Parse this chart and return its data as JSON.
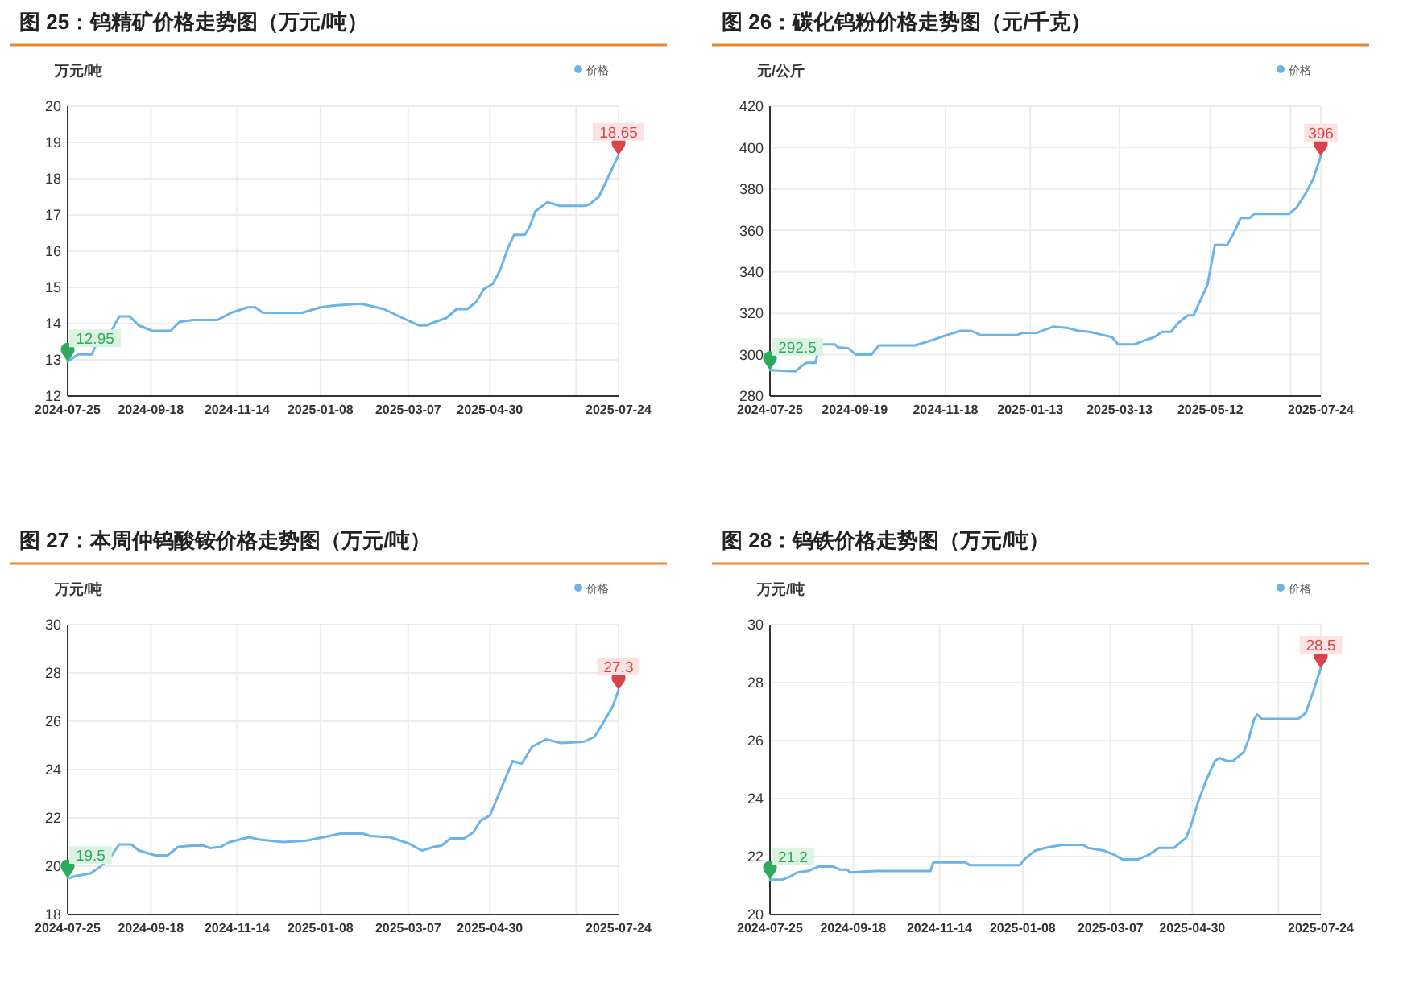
{
  "chart_data": [
    {
      "type": "line",
      "title": "图 25：钨精矿价格走势图（万元/吨）",
      "ylabel": "万元/吨",
      "legend": "top right",
      "grid": true,
      "marker": "none",
      "line_style": "solid",
      "xlim": [
        "2024-07-25",
        "2025-07-24"
      ],
      "xticks": [
        "2024-07-25",
        "2024-09-18",
        "2024-11-14",
        "2025-01-08",
        "2025-03-07",
        "2025-04-30",
        {
          "value": "2025-06-26",
          "label": null
        },
        "2025-07-24"
      ],
      "ylim": [
        12,
        20
      ],
      "yticks": [
        12,
        13,
        14,
        15,
        16,
        17,
        18,
        19,
        20
      ],
      "annotations": [
        {
          "text": "12.95",
          "x": "2024-07-25",
          "y": 12.95
        },
        {
          "text": "18.65",
          "x": "2025-07-24",
          "y": 18.65
        }
      ],
      "series": [
        {
          "name": "价格",
          "color": "#6ab4e8",
          "x": [
            "2024-07-25",
            "2024-08-01",
            "2024-08-10",
            "2024-08-12",
            "2024-08-23",
            "2024-08-28",
            "2024-09-04",
            "2024-09-10",
            "2024-09-19",
            "2024-10-01",
            "2024-10-07",
            "2024-10-16",
            "2024-11-01",
            "2024-11-10",
            "2024-11-21",
            "2024-11-26",
            "2024-12-01",
            "2024-12-27",
            "2025-01-08",
            "2025-01-17",
            "2025-02-04",
            "2025-02-19",
            "2025-03-01",
            "2025-03-14",
            "2025-03-19",
            "2025-03-25",
            "2025-04-01",
            "2025-04-08",
            "2025-04-15",
            "2025-04-21",
            "2025-04-26",
            "2025-05-02",
            "2025-05-07",
            "2025-05-12",
            "2025-05-16",
            "2025-05-23",
            "2025-05-26",
            "2025-05-30",
            "2025-06-07",
            "2025-06-15",
            "2025-07-02",
            "2025-07-05",
            "2025-07-11",
            "2025-07-15",
            "2025-07-20",
            "2025-07-24"
          ],
          "values": [
            12.95,
            13.15,
            13.15,
            13.35,
            13.8,
            14.2,
            14.2,
            13.95,
            13.8,
            13.8,
            14.05,
            14.1,
            14.1,
            14.3,
            14.45,
            14.45,
            14.3,
            14.3,
            14.45,
            14.5,
            14.55,
            14.4,
            14.2,
            13.95,
            13.95,
            14.05,
            14.15,
            14.4,
            14.4,
            14.6,
            14.95,
            15.1,
            15.5,
            16.1,
            16.45,
            16.45,
            16.65,
            17.1,
            17.35,
            17.25,
            17.25,
            17.3,
            17.5,
            17.85,
            18.3,
            18.65
          ]
        }
      ]
    },
    {
      "type": "line",
      "title": "图 26：碳化钨粉价格走势图（元/千克）",
      "ylabel": "元/公斤",
      "legend": "top right",
      "grid": true,
      "marker": "none",
      "line_style": "solid",
      "xlim": [
        "2024-07-25",
        "2025-07-24"
      ],
      "xticks": [
        "2024-07-25",
        "2024-09-19",
        "2024-11-18",
        "2025-01-13",
        "2025-03-13",
        "2025-05-12",
        {
          "value": "2025-07-04",
          "label": null
        },
        "2025-07-24"
      ],
      "ylim": [
        280,
        420
      ],
      "yticks": [
        280,
        300,
        320,
        340,
        360,
        380,
        400,
        420
      ],
      "annotations": [
        {
          "text": "292.5",
          "x": "2024-07-25",
          "y": 292.5
        },
        {
          "text": "396",
          "x": "2025-07-24",
          "y": 396
        }
      ],
      "series": [
        {
          "name": "价格",
          "color": "#6ab4e8",
          "x": [
            "2024-07-25",
            "2024-08-11",
            "2024-08-14",
            "2024-08-18",
            "2024-08-24",
            "2024-08-27",
            "2024-09-06",
            "2024-09-08",
            "2024-09-15",
            "2024-09-20",
            "2024-09-30",
            "2024-10-05",
            "2024-10-29",
            "2024-11-09",
            "2024-11-19",
            "2024-11-28",
            "2024-12-05",
            "2024-12-11",
            "2025-01-04",
            "2025-01-08",
            "2025-01-17",
            "2025-01-28",
            "2025-02-06",
            "2025-02-14",
            "2025-02-21",
            "2025-03-02",
            "2025-03-08",
            "2025-03-12",
            "2025-03-23",
            "2025-03-30",
            "2025-04-05",
            "2025-04-10",
            "2025-04-16",
            "2025-04-21",
            "2025-04-27",
            "2025-05-01",
            "2025-05-04",
            "2025-05-10",
            "2025-05-15",
            "2025-05-23",
            "2025-05-27",
            "2025-06-01",
            "2025-06-07",
            "2025-06-10",
            "2025-07-03",
            "2025-07-08",
            "2025-07-14",
            "2025-07-19",
            "2025-07-24"
          ],
          "values": [
            292.5,
            292,
            294,
            296,
            296,
            305,
            305,
            303.5,
            303,
            300,
            300,
            304.5,
            304.5,
            307,
            309.5,
            311.5,
            311.5,
            309.5,
            309.5,
            310.5,
            310.5,
            313.5,
            313,
            311.5,
            311,
            309.5,
            308.5,
            305,
            305,
            307,
            308.5,
            311,
            311,
            315.5,
            319,
            319,
            324,
            333.5,
            353,
            353,
            358,
            366,
            366,
            368,
            368,
            371,
            378,
            385,
            396
          ]
        }
      ]
    },
    {
      "type": "line",
      "title": "图 27：本周仲钨酸铵价格走势图（万元/吨）",
      "ylabel": "万元/吨",
      "legend": "top right",
      "grid": true,
      "marker": "none",
      "line_style": "solid",
      "xlim": [
        "2024-07-25",
        "2025-07-24"
      ],
      "xticks": [
        "2024-07-25",
        "2024-09-18",
        "2024-11-14",
        "2025-01-08",
        "2025-03-07",
        "2025-04-30",
        {
          "value": "2025-06-26",
          "label": null
        },
        "2025-07-24"
      ],
      "ylim": [
        18,
        30
      ],
      "yticks": [
        18,
        20,
        22,
        24,
        26,
        28,
        30
      ],
      "annotations": [
        {
          "text": "19.5",
          "x": "2024-07-25",
          "y": 19.5
        },
        {
          "text": "27.3",
          "x": "2025-07-24",
          "y": 27.3
        }
      ],
      "series": [
        {
          "name": "价格",
          "color": "#6ab4e8",
          "x": [
            "2024-07-25",
            "2024-07-31",
            "2024-08-09",
            "2024-08-15",
            "2024-08-22",
            "2024-08-28",
            "2024-09-05",
            "2024-09-10",
            "2024-09-21",
            "2024-09-29",
            "2024-10-06",
            "2024-10-15",
            "2024-10-23",
            "2024-10-27",
            "2024-11-03",
            "2024-11-09",
            "2024-11-22",
            "2024-11-29",
            "2024-12-14",
            "2024-12-29",
            "2025-01-10",
            "2025-01-21",
            "2025-02-05",
            "2025-02-10",
            "2025-02-23",
            "2025-03-07",
            "2025-03-16",
            "2025-03-24",
            "2025-03-29",
            "2025-04-04",
            "2025-04-13",
            "2025-04-19",
            "2025-04-24",
            "2025-04-30",
            "2025-05-08",
            "2025-05-15",
            "2025-05-21",
            "2025-05-28",
            "2025-06-06",
            "2025-06-16",
            "2025-07-01",
            "2025-07-08",
            "2025-07-14",
            "2025-07-20",
            "2025-07-24"
          ],
          "values": [
            19.5,
            19.6,
            19.7,
            19.95,
            20.35,
            20.9,
            20.9,
            20.65,
            20.45,
            20.45,
            20.8,
            20.85,
            20.85,
            20.75,
            20.8,
            21.0,
            21.2,
            21.1,
            21.0,
            21.05,
            21.2,
            21.35,
            21.35,
            21.25,
            21.2,
            20.95,
            20.65,
            20.8,
            20.85,
            21.15,
            21.15,
            21.4,
            21.9,
            22.1,
            23.3,
            24.35,
            24.25,
            24.95,
            25.25,
            25.1,
            25.15,
            25.35,
            25.95,
            26.6,
            27.3
          ]
        }
      ]
    },
    {
      "type": "line",
      "title": "图 28：钨铁价格走势图（万元/吨）",
      "ylabel": "万元/吨",
      "legend": "top right",
      "grid": true,
      "marker": "none",
      "line_style": "solid",
      "xlim": [
        "2024-07-25",
        "2025-07-24"
      ],
      "xticks": [
        "2024-07-25",
        "2024-09-18",
        "2024-11-14",
        "2025-01-08",
        "2025-03-07",
        "2025-04-30",
        {
          "value": "2025-06-26",
          "label": null
        },
        "2025-07-24"
      ],
      "ylim": [
        20,
        30
      ],
      "yticks": [
        20,
        22,
        24,
        26,
        28,
        30
      ],
      "annotations": [
        {
          "text": "21.2",
          "x": "2024-07-25",
          "y": 21.2
        },
        {
          "text": "28.5",
          "x": "2025-07-24",
          "y": 28.5
        }
      ],
      "series": [
        {
          "name": "价格",
          "color": "#6ab4e8",
          "x": [
            "2024-07-25",
            "2024-08-02",
            "2024-08-07",
            "2024-08-12",
            "2024-08-19",
            "2024-08-26",
            "2024-09-05",
            "2024-09-09",
            "2024-09-14",
            "2024-09-16",
            "2024-10-03",
            "2024-11-08",
            "2024-11-10",
            "2024-12-01",
            "2024-12-04",
            "2025-01-06",
            "2025-01-10",
            "2025-01-16",
            "2025-01-23",
            "2025-02-03",
            "2025-02-17",
            "2025-02-20",
            "2025-03-03",
            "2025-03-10",
            "2025-03-15",
            "2025-03-25",
            "2025-04-01",
            "2025-04-08",
            "2025-04-18",
            "2025-04-26",
            "2025-04-29",
            "2025-05-04",
            "2025-05-09",
            "2025-05-15",
            "2025-05-18",
            "2025-05-23",
            "2025-05-27",
            "2025-06-03",
            "2025-06-06",
            "2025-06-10",
            "2025-06-12",
            "2025-06-15",
            "2025-07-09",
            "2025-07-14",
            "2025-07-19",
            "2025-07-24"
          ],
          "values": [
            21.2,
            21.2,
            21.3,
            21.45,
            21.5,
            21.65,
            21.65,
            21.55,
            21.55,
            21.45,
            21.5,
            21.5,
            21.8,
            21.8,
            21.7,
            21.7,
            21.95,
            22.2,
            22.3,
            22.4,
            22.4,
            22.3,
            22.2,
            22.05,
            21.9,
            21.9,
            22.05,
            22.3,
            22.3,
            22.65,
            23.05,
            23.9,
            24.6,
            25.3,
            25.4,
            25.3,
            25.3,
            25.6,
            26.0,
            26.75,
            26.9,
            26.75,
            26.75,
            26.95,
            27.7,
            28.5
          ]
        }
      ]
    }
  ]
}
